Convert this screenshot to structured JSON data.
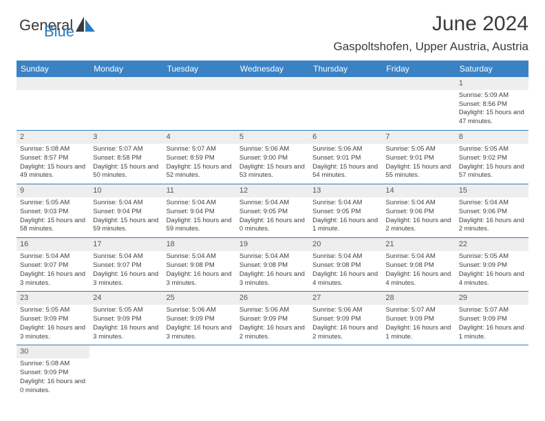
{
  "logo": {
    "text1": "General",
    "text2": "Blue",
    "brand_color": "#2b7bbd",
    "text_color": "#3a3a3a"
  },
  "header": {
    "title": "June 2024",
    "location": "Gaspoltshofen, Upper Austria, Austria"
  },
  "colors": {
    "header_bg": "#3b82c4",
    "header_fg": "#ffffff",
    "daynum_bg": "#eeeeee",
    "border": "#2b7bbd"
  },
  "typography": {
    "title_fontsize": 30,
    "location_fontsize": 17,
    "th_fontsize": 12,
    "cell_fontsize": 9.5
  },
  "day_headers": [
    "Sunday",
    "Monday",
    "Tuesday",
    "Wednesday",
    "Thursday",
    "Friday",
    "Saturday"
  ],
  "first_weekday": 6,
  "days": [
    {
      "n": 1,
      "sunrise": "5:09 AM",
      "sunset": "8:56 PM",
      "daylight": "15 hours and 47 minutes."
    },
    {
      "n": 2,
      "sunrise": "5:08 AM",
      "sunset": "8:57 PM",
      "daylight": "15 hours and 49 minutes."
    },
    {
      "n": 3,
      "sunrise": "5:07 AM",
      "sunset": "8:58 PM",
      "daylight": "15 hours and 50 minutes."
    },
    {
      "n": 4,
      "sunrise": "5:07 AM",
      "sunset": "8:59 PM",
      "daylight": "15 hours and 52 minutes."
    },
    {
      "n": 5,
      "sunrise": "5:06 AM",
      "sunset": "9:00 PM",
      "daylight": "15 hours and 53 minutes."
    },
    {
      "n": 6,
      "sunrise": "5:06 AM",
      "sunset": "9:01 PM",
      "daylight": "15 hours and 54 minutes."
    },
    {
      "n": 7,
      "sunrise": "5:05 AM",
      "sunset": "9:01 PM",
      "daylight": "15 hours and 55 minutes."
    },
    {
      "n": 8,
      "sunrise": "5:05 AM",
      "sunset": "9:02 PM",
      "daylight": "15 hours and 57 minutes."
    },
    {
      "n": 9,
      "sunrise": "5:05 AM",
      "sunset": "9:03 PM",
      "daylight": "15 hours and 58 minutes."
    },
    {
      "n": 10,
      "sunrise": "5:04 AM",
      "sunset": "9:04 PM",
      "daylight": "15 hours and 59 minutes."
    },
    {
      "n": 11,
      "sunrise": "5:04 AM",
      "sunset": "9:04 PM",
      "daylight": "15 hours and 59 minutes."
    },
    {
      "n": 12,
      "sunrise": "5:04 AM",
      "sunset": "9:05 PM",
      "daylight": "16 hours and 0 minutes."
    },
    {
      "n": 13,
      "sunrise": "5:04 AM",
      "sunset": "9:05 PM",
      "daylight": "16 hours and 1 minute."
    },
    {
      "n": 14,
      "sunrise": "5:04 AM",
      "sunset": "9:06 PM",
      "daylight": "16 hours and 2 minutes."
    },
    {
      "n": 15,
      "sunrise": "5:04 AM",
      "sunset": "9:06 PM",
      "daylight": "16 hours and 2 minutes."
    },
    {
      "n": 16,
      "sunrise": "5:04 AM",
      "sunset": "9:07 PM",
      "daylight": "16 hours and 3 minutes."
    },
    {
      "n": 17,
      "sunrise": "5:04 AM",
      "sunset": "9:07 PM",
      "daylight": "16 hours and 3 minutes."
    },
    {
      "n": 18,
      "sunrise": "5:04 AM",
      "sunset": "9:08 PM",
      "daylight": "16 hours and 3 minutes."
    },
    {
      "n": 19,
      "sunrise": "5:04 AM",
      "sunset": "9:08 PM",
      "daylight": "16 hours and 3 minutes."
    },
    {
      "n": 20,
      "sunrise": "5:04 AM",
      "sunset": "9:08 PM",
      "daylight": "16 hours and 4 minutes."
    },
    {
      "n": 21,
      "sunrise": "5:04 AM",
      "sunset": "9:08 PM",
      "daylight": "16 hours and 4 minutes."
    },
    {
      "n": 22,
      "sunrise": "5:05 AM",
      "sunset": "9:09 PM",
      "daylight": "16 hours and 4 minutes."
    },
    {
      "n": 23,
      "sunrise": "5:05 AM",
      "sunset": "9:09 PM",
      "daylight": "16 hours and 3 minutes."
    },
    {
      "n": 24,
      "sunrise": "5:05 AM",
      "sunset": "9:09 PM",
      "daylight": "16 hours and 3 minutes."
    },
    {
      "n": 25,
      "sunrise": "5:06 AM",
      "sunset": "9:09 PM",
      "daylight": "16 hours and 3 minutes."
    },
    {
      "n": 26,
      "sunrise": "5:06 AM",
      "sunset": "9:09 PM",
      "daylight": "16 hours and 2 minutes."
    },
    {
      "n": 27,
      "sunrise": "5:06 AM",
      "sunset": "9:09 PM",
      "daylight": "16 hours and 2 minutes."
    },
    {
      "n": 28,
      "sunrise": "5:07 AM",
      "sunset": "9:09 PM",
      "daylight": "16 hours and 1 minute."
    },
    {
      "n": 29,
      "sunrise": "5:07 AM",
      "sunset": "9:09 PM",
      "daylight": "16 hours and 1 minute."
    },
    {
      "n": 30,
      "sunrise": "5:08 AM",
      "sunset": "9:09 PM",
      "daylight": "16 hours and 0 minutes."
    }
  ],
  "labels": {
    "sunrise": "Sunrise:",
    "sunset": "Sunset:",
    "daylight": "Daylight:"
  }
}
